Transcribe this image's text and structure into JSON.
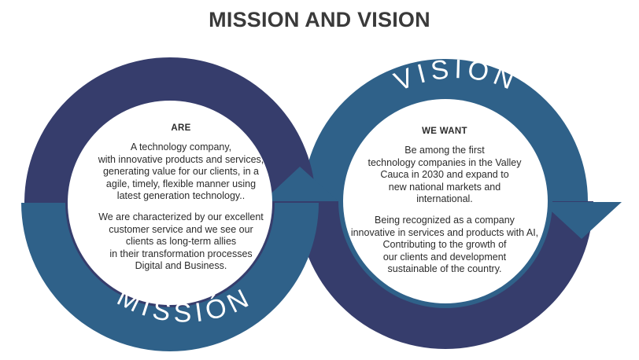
{
  "title": "MISSION AND VISION",
  "mission": {
    "arc_label": "MISSIÓN",
    "heading": "ARE",
    "paragraph1": "A technology company,\nwith innovative products and services,\ngenerating value for our clients, in a\nagile, timely, flexible manner using\nlatest generation technology..",
    "paragraph2": "We are characterized by our excellent\ncustomer service and we see our\nclients as long-term allies\nin their transformation processes\nDigital and Business."
  },
  "vision": {
    "arc_label": "VISIÓN",
    "heading": "WE WANT",
    "paragraph1": "Be among the first\ntechnology companies in the Valley\nCauca in 2030 and expand to\nnew national markets and\ninternational.",
    "paragraph2": "Being recognized as a company\ninnovative in services and products with AI,\nContributing to the growth of\nour clients and development\nsustainable of the country."
  },
  "colors": {
    "dark_navy": "#363d6c",
    "steel_blue": "#2f6189",
    "text": "#2b2b2b",
    "title": "#3a3a3a"
  }
}
